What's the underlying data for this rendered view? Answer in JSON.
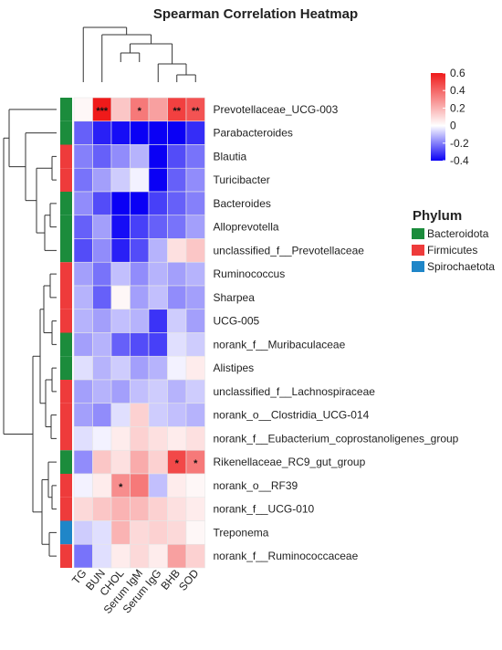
{
  "chart_data": {
    "type": "heatmap",
    "title": "Spearman Correlation Heatmap",
    "columns": [
      "TG",
      "BUN",
      "CHOL",
      "Serum IgM",
      "Serum IgG",
      "BHB",
      "SOD"
    ],
    "rows": [
      "Prevotellaceae_UCG-003",
      "Parabacteroides",
      "Blautia",
      "Turicibacter",
      "Bacteroides",
      "Alloprevotella",
      "unclassified_f__Prevotellaceae",
      "Ruminococcus",
      "Sharpea",
      "UCG-005",
      "norank_f__Muribaculaceae",
      "Alistipes",
      "unclassified_f__Lachnospiraceae",
      "norank_o__Clostridia_UCG-014",
      "norank_f__Eubacterium_coprostanoligenes_group",
      "Rikenellaceae_RC9_gut_group",
      "norank_o__RF39",
      "norank_f__UCG-010",
      "Treponema",
      "norank_f__Ruminococcaceae"
    ],
    "values": [
      [
        0.02,
        0.62,
        0.15,
        0.35,
        0.25,
        0.5,
        0.45
      ],
      [
        -0.25,
        -0.35,
        -0.38,
        -0.4,
        -0.4,
        -0.42,
        -0.33
      ],
      [
        -0.2,
        -0.25,
        -0.18,
        -0.12,
        -0.42,
        -0.28,
        -0.22
      ],
      [
        -0.22,
        -0.15,
        -0.08,
        -0.02,
        -0.4,
        -0.25,
        -0.18
      ],
      [
        -0.18,
        -0.28,
        -0.4,
        -0.42,
        -0.3,
        -0.25,
        -0.2
      ],
      [
        -0.25,
        -0.15,
        -0.38,
        -0.3,
        -0.25,
        -0.22,
        -0.15
      ],
      [
        -0.28,
        -0.18,
        -0.35,
        -0.28,
        -0.12,
        0.08,
        0.15
      ],
      [
        -0.15,
        -0.22,
        -0.1,
        -0.18,
        -0.12,
        -0.15,
        -0.12
      ],
      [
        -0.12,
        -0.25,
        0.02,
        -0.15,
        -0.1,
        -0.18,
        -0.15
      ],
      [
        -0.12,
        -0.15,
        -0.1,
        -0.12,
        -0.32,
        -0.08,
        -0.15
      ],
      [
        -0.15,
        -0.12,
        -0.25,
        -0.28,
        -0.3,
        -0.05,
        -0.08
      ],
      [
        -0.05,
        -0.12,
        -0.08,
        -0.15,
        -0.12,
        -0.02,
        0.05
      ],
      [
        -0.15,
        -0.12,
        -0.15,
        -0.1,
        -0.08,
        -0.12,
        -0.08
      ],
      [
        -0.15,
        -0.18,
        -0.05,
        0.12,
        -0.08,
        -0.1,
        -0.12
      ],
      [
        -0.05,
        -0.02,
        0.05,
        0.12,
        0.08,
        0.05,
        0.08
      ],
      [
        -0.18,
        0.15,
        0.08,
        0.22,
        0.12,
        0.48,
        0.35
      ],
      [
        -0.02,
        0.05,
        0.3,
        0.35,
        -0.1,
        0.05,
        0.02
      ],
      [
        0.1,
        0.15,
        0.2,
        0.18,
        0.12,
        0.08,
        0.05
      ],
      [
        -0.08,
        -0.05,
        0.2,
        0.1,
        0.12,
        0.1,
        0.02
      ],
      [
        -0.22,
        -0.05,
        0.05,
        0.1,
        0.05,
        0.25,
        0.12
      ]
    ],
    "significance": [
      [
        "",
        "***",
        "",
        "*",
        "",
        "**",
        "**"
      ],
      [
        "",
        "",
        "",
        "",
        "",
        "",
        ""
      ],
      [
        "",
        "",
        "",
        "",
        "",
        "",
        ""
      ],
      [
        "",
        "",
        "",
        "",
        "",
        "",
        ""
      ],
      [
        "",
        "",
        "",
        "",
        "",
        "",
        ""
      ],
      [
        "",
        "",
        "",
        "",
        "",
        "",
        ""
      ],
      [
        "",
        "",
        "",
        "",
        "",
        "",
        ""
      ],
      [
        "",
        "",
        "",
        "",
        "",
        "",
        ""
      ],
      [
        "",
        "",
        "",
        "",
        "",
        "",
        ""
      ],
      [
        "",
        "",
        "",
        "",
        "",
        "",
        ""
      ],
      [
        "",
        "",
        "",
        "",
        "",
        "",
        ""
      ],
      [
        "",
        "",
        "",
        "",
        "",
        "",
        ""
      ],
      [
        "",
        "",
        "",
        "",
        "",
        "",
        ""
      ],
      [
        "",
        "",
        "",
        "",
        "",
        "",
        ""
      ],
      [
        "",
        "",
        "",
        "",
        "",
        "",
        ""
      ],
      [
        "",
        "",
        "",
        "",
        "",
        "*",
        "*"
      ],
      [
        "",
        "",
        "*",
        "",
        "",
        "",
        ""
      ],
      [
        "",
        "",
        "",
        "",
        "",
        "",
        ""
      ],
      [
        "",
        "",
        "",
        "",
        "",
        "",
        ""
      ],
      [
        "",
        "",
        "",
        "",
        "",
        "",
        ""
      ]
    ],
    "row_phylum": [
      "Bacteroidota",
      "Bacteroidota",
      "Firmicutes",
      "Firmicutes",
      "Bacteroidota",
      "Bacteroidota",
      "Bacteroidota",
      "Firmicutes",
      "Firmicutes",
      "Firmicutes",
      "Bacteroidota",
      "Bacteroidota",
      "Firmicutes",
      "Firmicutes",
      "Firmicutes",
      "Bacteroidota",
      "Firmicutes",
      "Firmicutes",
      "Spirochaetota",
      "Firmicutes"
    ],
    "colorbar": {
      "min": -0.4,
      "max": 0.6,
      "ticks": [
        "0.6",
        "0.4",
        "0.2",
        "0",
        "-0.2",
        "-0.4"
      ],
      "colors": {
        "negative": "#0a00f5",
        "zero": "#ffffff",
        "positive": "#ef1a1a"
      }
    },
    "phylum_legend": {
      "title": "Phylum",
      "items": [
        {
          "name": "Bacteroidota",
          "color": "#1b8c3c"
        },
        {
          "name": "Firmicutes",
          "color": "#ee3b3b"
        },
        {
          "name": "Spirochaetota",
          "color": "#1f86c8"
        }
      ]
    },
    "dendrogram_rows": true,
    "dendrogram_columns": true
  }
}
